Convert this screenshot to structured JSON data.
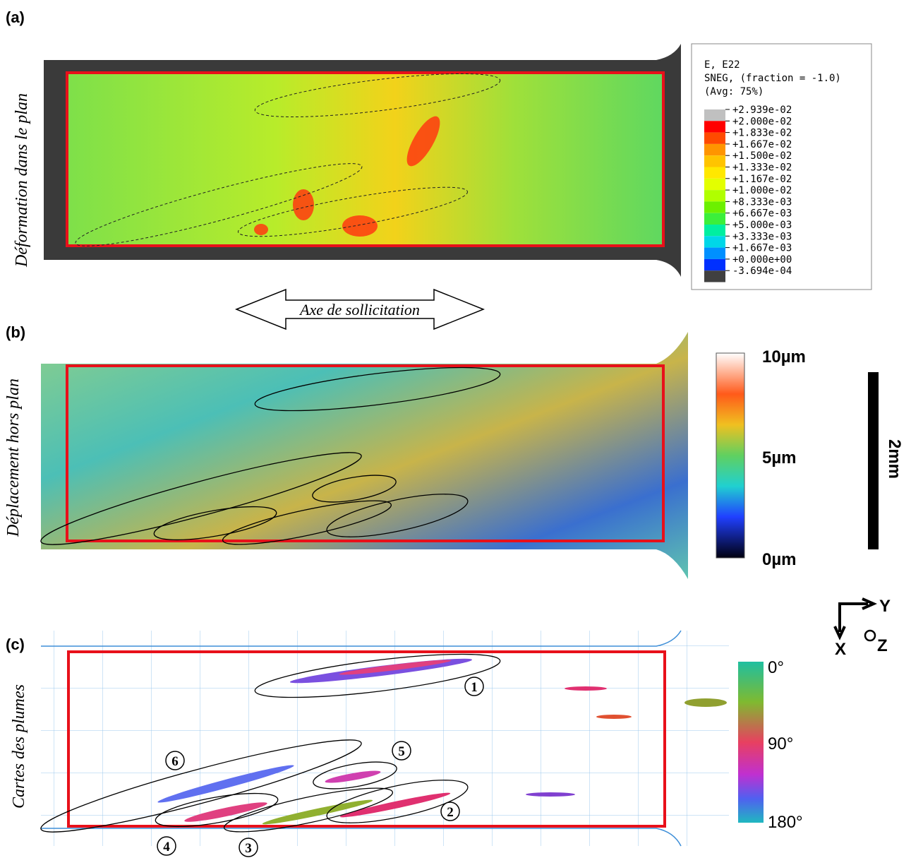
{
  "panels": [
    {
      "label": "(a)",
      "side_title": "Déformation dans le plan",
      "legend": {
        "lines": [
          "E, E22",
          "SNEG, (fraction = -1.0)",
          "(Avg: 75%)"
        ],
        "levels": [
          "+2.939e-02",
          "+2.000e-02",
          "+1.833e-02",
          "+1.667e-02",
          "+1.500e-02",
          "+1.333e-02",
          "+1.167e-02",
          "+1.000e-02",
          "+8.333e-03",
          "+6.667e-03",
          "+5.000e-03",
          "+3.333e-03",
          "+1.667e-03",
          "+0.000e+00",
          "-3.694e-04"
        ],
        "colors": [
          "#c0c0c0",
          "#ff0000",
          "#ff4a00",
          "#ff9500",
          "#ffc400",
          "#ffe800",
          "#e3ff00",
          "#b0ff00",
          "#6cf000",
          "#3bef3b",
          "#00efa0",
          "#00d7e8",
          "#0090ff",
          "#0030ff",
          "#404040"
        ]
      },
      "arrow_label": "Axe de sollicitation"
    },
    {
      "label": "(b)",
      "side_title": "Déplacement hors plan",
      "colorbar_labels": [
        "10µm",
        "5µm",
        "0µm"
      ],
      "scale_bar": "2mm"
    },
    {
      "label": "(c)",
      "side_title": "Cartes des plumes",
      "colorbar_labels": [
        "0°",
        "90°",
        "180°"
      ],
      "ellipse_labels": [
        "1",
        "2",
        "3",
        "4",
        "5",
        "6"
      ]
    }
  ],
  "axes": {
    "y": "Y",
    "x": "X",
    "z": "Z"
  }
}
